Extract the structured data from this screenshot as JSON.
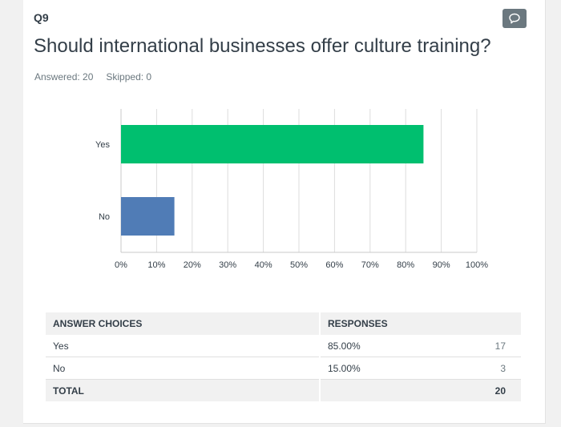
{
  "question": {
    "number": "Q9",
    "title": "Should international businesses offer culture training?",
    "answered": "Answered: 20",
    "skipped": "Skipped: 0"
  },
  "colors": {
    "yes_bar": "#00bf6f",
    "no_bar": "#507cb6",
    "grid": "#dddddd",
    "axis": "#c8c8c8"
  },
  "chart_data": {
    "type": "bar",
    "orientation": "horizontal",
    "categories": [
      "Yes",
      "No"
    ],
    "values": [
      85,
      15
    ],
    "xlim": [
      0,
      100
    ],
    "xticks": [
      "0%",
      "10%",
      "20%",
      "30%",
      "40%",
      "50%",
      "60%",
      "70%",
      "80%",
      "90%",
      "100%"
    ],
    "grid": true
  },
  "table": {
    "headers": [
      "ANSWER CHOICES",
      "RESPONSES"
    ],
    "rows": [
      {
        "choice": "Yes",
        "percent": "85.00%",
        "count": "17"
      },
      {
        "choice": "No",
        "percent": "15.00%",
        "count": "3"
      }
    ],
    "total_label": "TOTAL",
    "total_count": "20"
  },
  "icons": {
    "comment": "comment-bubble-icon"
  }
}
